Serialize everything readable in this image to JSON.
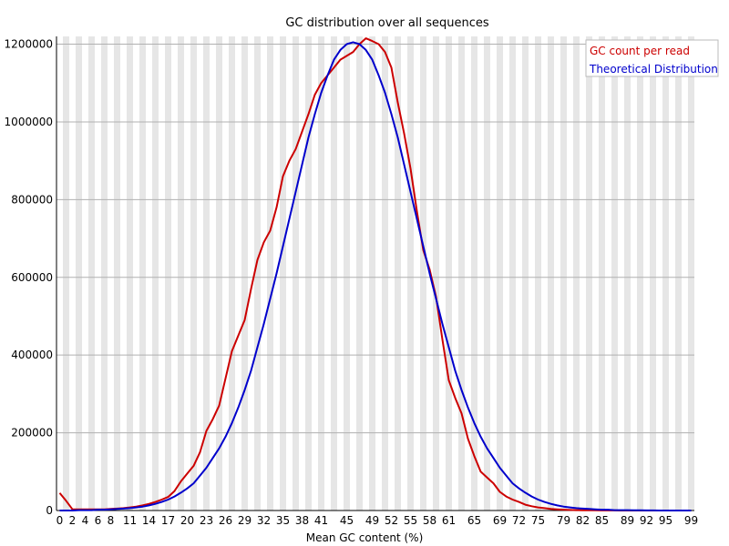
{
  "chart_data": {
    "type": "line",
    "title": "GC distribution over all sequences",
    "xlabel": "Mean GC content (%)",
    "ylabel": "",
    "xlim": [
      0,
      100
    ],
    "ylim": [
      0,
      1220000
    ],
    "x_ticks": [
      "0",
      "2",
      "4",
      "6",
      "8",
      "11",
      "14",
      "17",
      "20",
      "23",
      "26",
      "29",
      "32",
      "35",
      "38",
      "41",
      "45",
      "49",
      "52",
      "55",
      "58",
      "61",
      "65",
      "69",
      "72",
      "75",
      "79",
      "82",
      "85",
      "89",
      "92",
      "95",
      "99"
    ],
    "y_ticks": [
      0,
      200000,
      400000,
      600000,
      800000,
      1000000,
      1200000
    ],
    "y_tick_labels": [
      "0",
      "200000",
      "400000",
      "600000",
      "800000",
      "1000000",
      "1200000"
    ],
    "grid": "horizontal lines with alternating vertical bands",
    "legend": {
      "placement": "top-right",
      "entries": [
        "GC count per read",
        "Theoretical Distribution"
      ]
    },
    "series": [
      {
        "name": "GC count per read",
        "color": "#cc0000",
        "x": [
          0,
          1,
          2,
          3,
          4,
          5,
          6,
          7,
          8,
          9,
          10,
          11,
          12,
          13,
          14,
          15,
          16,
          17,
          18,
          19,
          20,
          21,
          22,
          23,
          24,
          25,
          26,
          27,
          28,
          29,
          30,
          31,
          32,
          33,
          34,
          35,
          36,
          37,
          38,
          39,
          40,
          41,
          42,
          43,
          44,
          45,
          46,
          47,
          48,
          49,
          50,
          51,
          52,
          53,
          54,
          55,
          56,
          57,
          58,
          59,
          60,
          61,
          62,
          63,
          64,
          65,
          66,
          67,
          68,
          69,
          70,
          71,
          72,
          73,
          74,
          75,
          76,
          77,
          78,
          79,
          80,
          81,
          82,
          83,
          84,
          85,
          86,
          87,
          88,
          89,
          90,
          91,
          92,
          93,
          94,
          95,
          96,
          97,
          98,
          99
        ],
        "y": [
          45000,
          25000,
          3000,
          3000,
          3000,
          3000,
          3000,
          3000,
          4000,
          5000,
          6000,
          8000,
          10000,
          13000,
          17000,
          22000,
          28000,
          35000,
          50000,
          75000,
          95000,
          115000,
          150000,
          205000,
          235000,
          270000,
          340000,
          410000,
          450000,
          490000,
          570000,
          645000,
          690000,
          720000,
          780000,
          860000,
          900000,
          930000,
          975000,
          1020000,
          1070000,
          1100000,
          1120000,
          1140000,
          1160000,
          1170000,
          1180000,
          1200000,
          1215000,
          1208000,
          1200000,
          1180000,
          1140000,
          1050000,
          970000,
          880000,
          770000,
          670000,
          620000,
          550000,
          440000,
          335000,
          290000,
          250000,
          185000,
          140000,
          100000,
          85000,
          70000,
          48000,
          36000,
          28000,
          22000,
          15000,
          11000,
          8000,
          6000,
          4000,
          3000,
          2000,
          1500,
          1000,
          800,
          600,
          400,
          300,
          200,
          150,
          100,
          80,
          60,
          50,
          40,
          30,
          20,
          10,
          10,
          5,
          0,
          0
        ]
      },
      {
        "name": "Theoretical Distribution",
        "color": "#0000cc",
        "x": [
          0,
          1,
          2,
          3,
          4,
          5,
          6,
          7,
          8,
          9,
          10,
          11,
          12,
          13,
          14,
          15,
          16,
          17,
          18,
          19,
          20,
          21,
          22,
          23,
          24,
          25,
          26,
          27,
          28,
          29,
          30,
          31,
          32,
          33,
          34,
          35,
          36,
          37,
          38,
          39,
          40,
          41,
          42,
          43,
          44,
          45,
          46,
          47,
          48,
          49,
          50,
          51,
          52,
          53,
          54,
          55,
          56,
          57,
          58,
          59,
          60,
          61,
          62,
          63,
          64,
          65,
          66,
          67,
          68,
          69,
          70,
          71,
          72,
          73,
          74,
          75,
          76,
          77,
          78,
          79,
          80,
          81,
          82,
          83,
          84,
          85,
          86,
          87,
          88,
          89,
          90,
          91,
          92,
          93,
          94,
          95,
          96,
          97,
          98,
          99
        ],
        "y": [
          0,
          0,
          0,
          1000,
          1000,
          1000,
          2000,
          2000,
          3000,
          4000,
          5000,
          6000,
          8000,
          10000,
          13000,
          17000,
          22000,
          28000,
          36000,
          46000,
          57000,
          70000,
          90000,
          110000,
          135000,
          160000,
          190000,
          225000,
          265000,
          310000,
          360000,
          420000,
          480000,
          545000,
          610000,
          680000,
          750000,
          820000,
          890000,
          960000,
          1020000,
          1075000,
          1120000,
          1160000,
          1185000,
          1200000,
          1205000,
          1200000,
          1185000,
          1160000,
          1120000,
          1075000,
          1020000,
          960000,
          890000,
          820000,
          750000,
          680000,
          610000,
          545000,
          480000,
          420000,
          360000,
          310000,
          265000,
          225000,
          190000,
          160000,
          135000,
          110000,
          90000,
          70000,
          57000,
          46000,
          36000,
          28000,
          22000,
          17000,
          13000,
          10000,
          8000,
          6000,
          5000,
          4000,
          3000,
          2000,
          2000,
          1000,
          1000,
          1000,
          500,
          500,
          300,
          200,
          100,
          100,
          50,
          20,
          10,
          0
        ]
      }
    ]
  }
}
